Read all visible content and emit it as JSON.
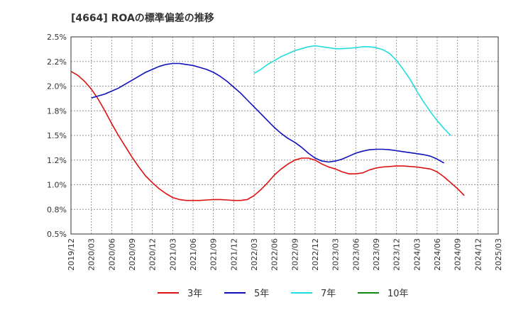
{
  "chart_data": {
    "type": "line",
    "title": "[4664]  ROAの標準偏差の推移",
    "xlabel": "",
    "ylabel": "",
    "ylim": [
      0.5,
      2.5
    ],
    "y_ticks": [
      "0.5%",
      "0.8%",
      "1.0%",
      "1.2%",
      "1.5%",
      "1.8%",
      "2.0%",
      "2.2%",
      "2.5%"
    ],
    "x_ticks": [
      "2019/12",
      "2020/03",
      "2020/06",
      "2020/09",
      "2020/12",
      "2021/03",
      "2021/06",
      "2021/09",
      "2021/12",
      "2022/03",
      "2022/06",
      "2022/09",
      "2022/12",
      "2023/03",
      "2023/06",
      "2023/09",
      "2023/12",
      "2024/03",
      "2024/06",
      "2024/09",
      "2024/12",
      "2025/03"
    ],
    "grid": true,
    "legend_position": "bottom",
    "series": [
      {
        "name": "3年",
        "color": "#dd1111",
        "values": [
          2.15,
          2.11,
          2.05,
          1.97,
          1.87,
          1.75,
          1.62,
          1.5,
          1.39,
          1.28,
          1.18,
          1.09,
          1.02,
          0.96,
          0.91,
          0.87,
          0.85,
          0.84,
          0.84,
          0.84,
          0.845,
          0.85,
          0.85,
          0.845,
          0.84,
          0.84,
          0.85,
          0.89,
          0.95,
          1.02,
          1.1,
          1.16,
          1.21,
          1.25,
          1.27,
          1.27,
          1.25,
          1.21,
          1.18,
          1.16,
          1.13,
          1.11,
          1.11,
          1.12,
          1.15,
          1.17,
          1.18,
          1.185,
          1.19,
          1.19,
          1.185,
          1.18,
          1.17,
          1.16,
          1.13,
          1.08,
          1.02,
          0.96,
          0.89
        ]
      },
      {
        "name": "5年",
        "color": "#1111bb",
        "values": [
          null,
          null,
          null,
          1.88,
          1.9,
          1.92,
          1.95,
          1.98,
          2.02,
          2.06,
          2.1,
          2.14,
          2.17,
          2.2,
          2.22,
          2.23,
          2.23,
          2.22,
          2.21,
          2.19,
          2.17,
          2.14,
          2.1,
          2.05,
          1.99,
          1.93,
          1.86,
          1.79,
          1.72,
          1.65,
          1.58,
          1.52,
          1.47,
          1.43,
          1.38,
          1.32,
          1.27,
          1.24,
          1.23,
          1.24,
          1.26,
          1.29,
          1.32,
          1.34,
          1.355,
          1.36,
          1.36,
          1.355,
          1.345,
          1.335,
          1.325,
          1.315,
          1.305,
          1.29,
          1.26,
          1.22
        ]
      },
      {
        "name": "7年",
        "color": "#22dddd",
        "values": [
          null,
          null,
          null,
          null,
          null,
          null,
          null,
          null,
          null,
          null,
          null,
          null,
          null,
          null,
          null,
          null,
          null,
          null,
          null,
          null,
          null,
          null,
          null,
          null,
          null,
          null,
          null,
          2.13,
          2.17,
          2.22,
          2.26,
          2.3,
          2.33,
          2.36,
          2.38,
          2.4,
          2.41,
          2.4,
          2.39,
          2.38,
          2.38,
          2.385,
          2.39,
          2.4,
          2.4,
          2.39,
          2.37,
          2.33,
          2.26,
          2.17,
          2.07,
          1.95,
          1.84,
          1.74,
          1.65,
          1.57,
          1.5
        ]
      },
      {
        "name": "10年",
        "color": "#118811",
        "values": []
      }
    ]
  }
}
